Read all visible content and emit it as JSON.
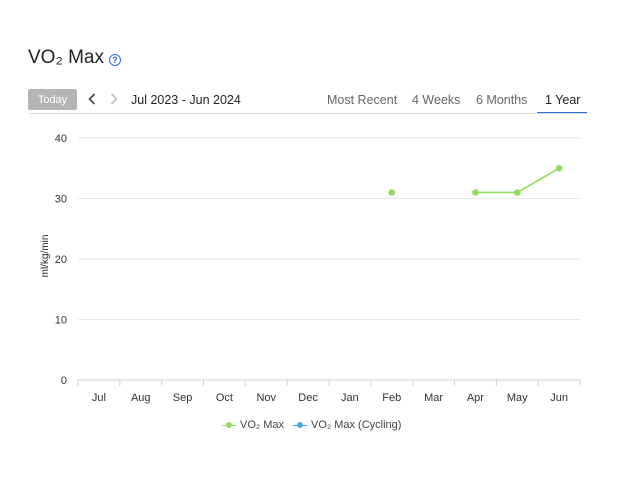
{
  "title": "VO₂ Max",
  "help_icon": "question-circle-icon",
  "controls": {
    "today_label": "Today",
    "prev_icon": "chevron-left-icon",
    "next_icon": "chevron-right-icon",
    "date_range": "Jul 2023 - Jun 2024"
  },
  "tabs": [
    {
      "label": "Most Recent",
      "active": false
    },
    {
      "label": "4 Weeks",
      "active": false
    },
    {
      "label": "6 Months",
      "active": false
    },
    {
      "label": "1 Year",
      "active": true
    }
  ],
  "colors": {
    "vo2": "#8fde5d",
    "cycling": "#4da3f0",
    "accent": "#2a6fdb"
  },
  "chart_data": {
    "type": "line",
    "ylabel": "ml/kg/min",
    "xlabel": "",
    "categories": [
      "Jul",
      "Aug",
      "Sep",
      "Oct",
      "Nov",
      "Dec",
      "Jan",
      "Feb",
      "Mar",
      "Apr",
      "May",
      "Jun"
    ],
    "y_ticks": [
      0,
      10,
      20,
      30,
      40
    ],
    "ylim": [
      0,
      40
    ],
    "grid": true,
    "legend_position": "bottom",
    "series": [
      {
        "name": "VO₂ Max",
        "values": [
          null,
          null,
          null,
          null,
          null,
          null,
          null,
          31,
          null,
          31,
          31,
          35
        ]
      },
      {
        "name": "VO₂ Max (Cycling)",
        "values": [
          null,
          null,
          null,
          null,
          null,
          null,
          null,
          null,
          null,
          null,
          null,
          null
        ]
      }
    ]
  }
}
